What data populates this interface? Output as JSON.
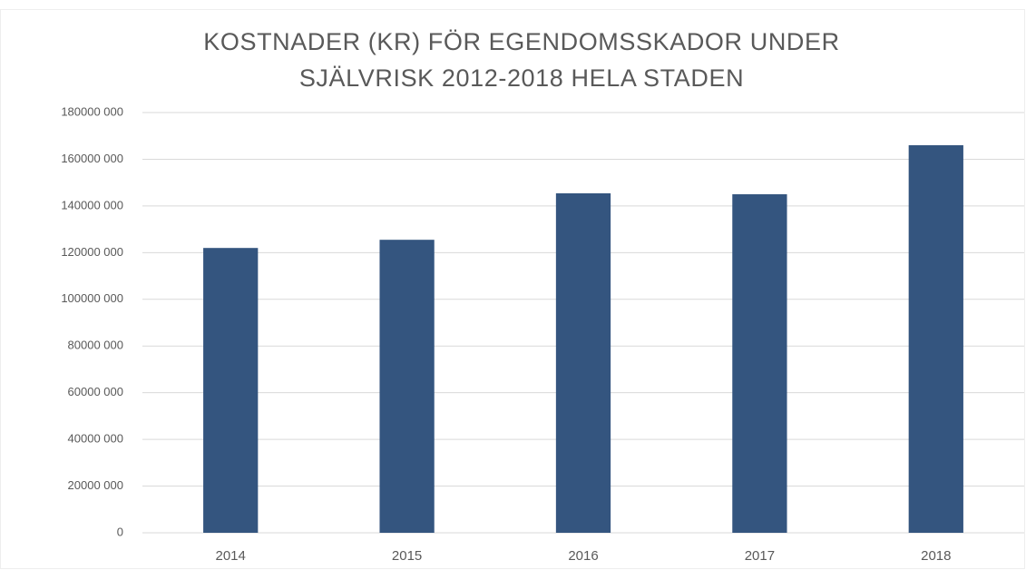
{
  "chart_data": {
    "type": "bar",
    "title": "KOSTNADER (KR) FÖR EGENDOMSSKADOR UNDER SJÄLVRISK 2012-2018 HELA STADEN",
    "categories": [
      "2014",
      "2015",
      "2016",
      "2017",
      "2018"
    ],
    "values": [
      122000000,
      125500000,
      145400000,
      145000000,
      166000000
    ],
    "color": "#34557f",
    "ylim": [
      0,
      180000000
    ],
    "yticks": [
      0,
      {
        "value": 20000000,
        "label": "20000 000"
      },
      {
        "value": 40000000,
        "label": "40000 000"
      },
      {
        "value": 60000000,
        "label": "60000 000"
      },
      {
        "value": 80000000,
        "label": "80000 000"
      },
      {
        "value": 100000000,
        "label": "100000 000"
      },
      {
        "value": 120000000,
        "label": "120000 000"
      },
      {
        "value": 140000000,
        "label": "140000 000"
      },
      {
        "value": 160000000,
        "label": "160000 000"
      },
      {
        "value": 180000000,
        "label": "180000 000"
      }
    ],
    "grid": true
  }
}
